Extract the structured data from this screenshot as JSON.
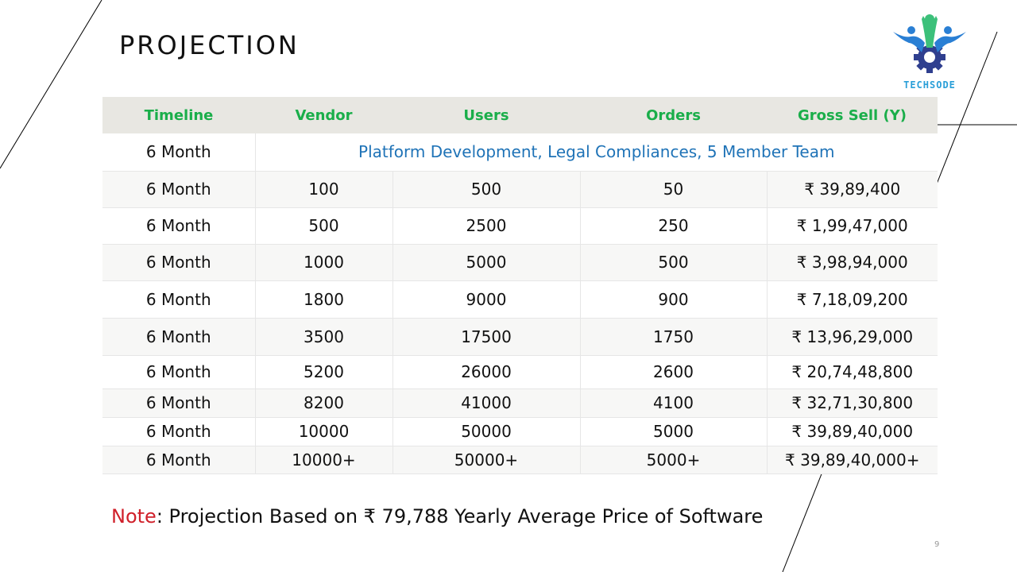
{
  "slide": {
    "title": "PROJECTION",
    "page_number": "9",
    "note_label": "Note",
    "note_text": ": Projection Based on ₹ 79,788 Yearly Average Price of Software"
  },
  "logo": {
    "text": "TECHSODE",
    "colors": {
      "blue": "#2a7fd4",
      "green": "#3cc07a",
      "gear": "#2f3f8f"
    }
  },
  "table": {
    "headers": [
      "Timeline",
      "Vendor",
      "Users",
      "Orders",
      "Gross Sell (Y)"
    ],
    "span_row": {
      "timeline": "6 Month",
      "text": "Platform Development, Legal Compliances, 5 Member Team"
    },
    "rows": [
      [
        "6 Month",
        "100",
        "500",
        "50",
        "₹ 39,89,400"
      ],
      [
        "6 Month",
        "500",
        "2500",
        "250",
        "₹ 1,99,47,000"
      ],
      [
        "6 Month",
        "1000",
        "5000",
        "500",
        "₹ 3,98,94,000"
      ],
      [
        "6 Month",
        "1800",
        "9000",
        "900",
        "₹ 7,18,09,200"
      ],
      [
        "6 Month",
        "3500",
        "17500",
        "1750",
        "₹ 13,96,29,000"
      ],
      [
        "6 Month",
        "5200",
        "26000",
        "2600",
        "₹ 20,74,48,800"
      ],
      [
        "6 Month",
        "8200",
        "41000",
        "4100",
        "₹ 32,71,30,800"
      ],
      [
        "6 Month",
        "10000",
        "50000",
        "5000",
        "₹ 39,89,40,000"
      ],
      [
        "6 Month",
        "10000+",
        "50000+",
        "5000+",
        "₹ 39,89,40,000+"
      ]
    ]
  },
  "colors": {
    "header_text": "#1aae4a",
    "header_bg": "#e8e7e2",
    "span_text": "#1f73b7",
    "note_label": "#d0202a"
  }
}
